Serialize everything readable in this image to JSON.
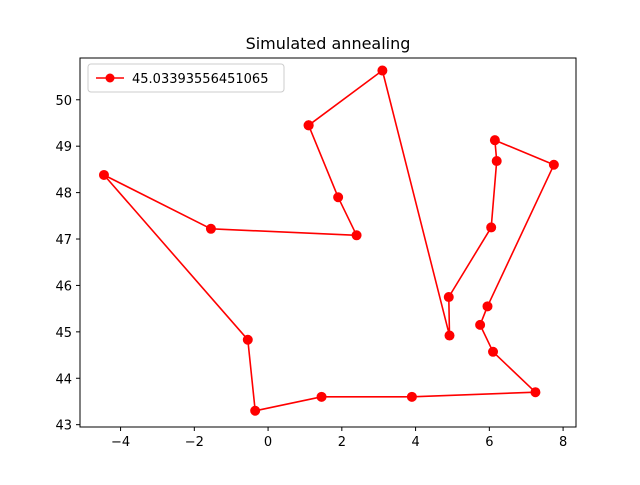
{
  "chart_data": {
    "type": "line",
    "title": "Simulated annealing",
    "xlabel": "",
    "ylabel": "",
    "xlim": [
      -5.1,
      8.35
    ],
    "ylim": [
      42.95,
      50.9
    ],
    "x_ticks": [
      -4,
      -2,
      0,
      2,
      4,
      6,
      8
    ],
    "y_ticks": [
      43,
      44,
      45,
      46,
      47,
      48,
      49,
      50
    ],
    "grid": false,
    "legend_position": "upper-left",
    "series": [
      {
        "name": "45.03393556451065",
        "color": "#ff0000",
        "marker": "circle",
        "points": [
          {
            "x": 1.1,
            "y": 49.45
          },
          {
            "x": 1.9,
            "y": 47.9
          },
          {
            "x": 2.4,
            "y": 47.08
          },
          {
            "x": -1.55,
            "y": 47.22
          },
          {
            "x": -4.45,
            "y": 48.38
          },
          {
            "x": -0.55,
            "y": 44.83
          },
          {
            "x": -0.35,
            "y": 43.3
          },
          {
            "x": 1.45,
            "y": 43.6
          },
          {
            "x": 3.9,
            "y": 43.6
          },
          {
            "x": 7.25,
            "y": 43.7
          },
          {
            "x": 6.1,
            "y": 44.57
          },
          {
            "x": 5.75,
            "y": 45.15
          },
          {
            "x": 5.95,
            "y": 45.55
          },
          {
            "x": 7.75,
            "y": 48.6
          },
          {
            "x": 6.15,
            "y": 49.13
          },
          {
            "x": 6.2,
            "y": 48.68
          },
          {
            "x": 6.05,
            "y": 47.25
          },
          {
            "x": 4.9,
            "y": 45.75
          },
          {
            "x": 4.92,
            "y": 44.92
          },
          {
            "x": 3.1,
            "y": 50.63
          },
          {
            "x": 1.1,
            "y": 49.45
          }
        ]
      }
    ]
  }
}
